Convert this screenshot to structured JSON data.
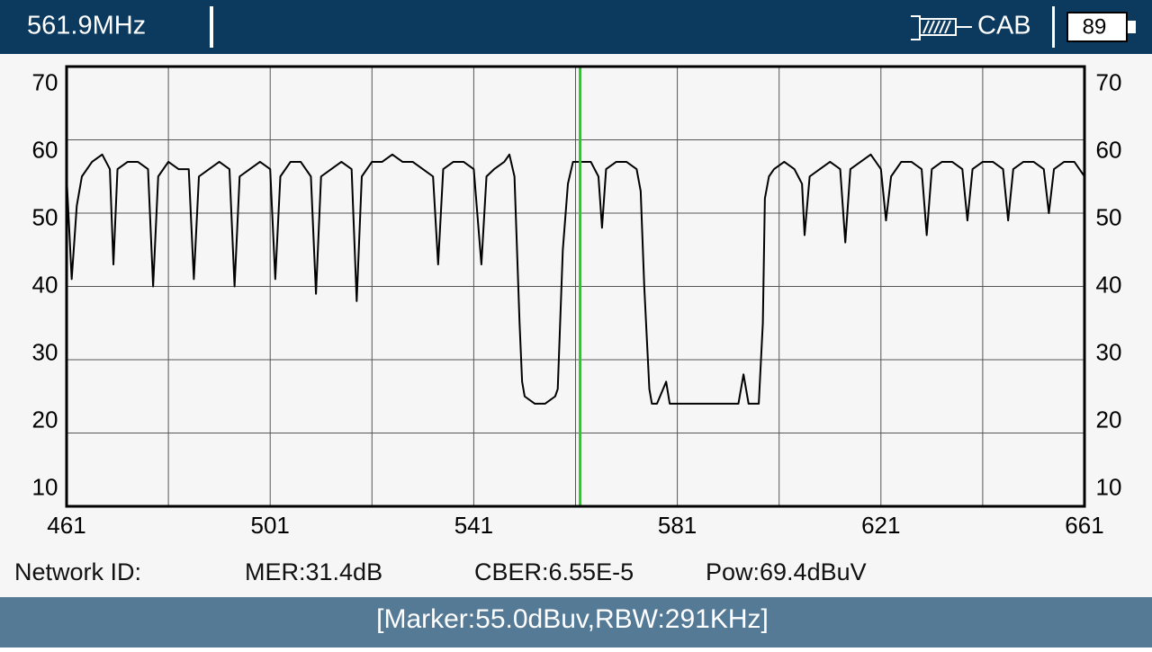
{
  "header": {
    "frequency": "561.9MHz",
    "mode": "CAB",
    "battery": "89"
  },
  "info": {
    "network_id": "Network ID:",
    "mer": "MER:31.4dB",
    "cber": "CBER:6.55E-5",
    "power": "Pow:69.4dBuV"
  },
  "status": "[Marker:55.0dBuv,RBW:291KHz]",
  "chart_data": {
    "type": "line",
    "color": "#000000",
    "xlim": [
      461,
      661
    ],
    "ylim": [
      10,
      70
    ],
    "xticks": [
      461,
      501,
      541,
      581,
      621,
      661
    ],
    "x_minor_grid": [
      481,
      521,
      561,
      601,
      641
    ],
    "yticks": [
      10,
      20,
      30,
      40,
      50,
      60,
      70
    ],
    "right_axis_labels": true,
    "grid": true,
    "marker": {
      "x": 561.9,
      "color": "#22cc22"
    },
    "x": [
      461,
      462,
      463,
      464,
      466,
      468,
      469.5,
      470.2,
      471,
      473,
      475,
      477,
      478,
      479,
      481,
      483,
      485,
      486,
      487,
      489,
      491,
      493,
      494,
      495,
      497,
      499,
      501,
      502,
      503,
      505,
      507,
      509,
      510,
      511,
      513,
      515,
      517,
      518,
      519,
      521,
      523,
      525,
      527,
      529,
      531,
      533,
      534,
      535,
      537,
      539,
      541,
      542.5,
      543.5,
      545,
      547,
      548,
      549,
      550,
      550.5,
      551,
      553,
      555,
      557,
      557.5,
      558.5,
      559.5,
      560.5,
      562,
      564,
      565.5,
      566.2,
      567,
      569,
      571,
      573,
      573.8,
      574.5,
      575.5,
      576,
      577,
      578.8,
      579.5,
      581,
      583,
      585,
      587,
      589,
      591,
      593,
      594,
      595,
      597,
      597.8,
      598.2,
      599,
      600,
      602,
      604,
      605.5,
      606,
      607,
      609,
      611,
      613,
      614,
      615,
      617,
      619,
      621,
      622,
      623,
      625,
      627,
      629,
      630,
      631,
      633,
      635,
      637,
      638,
      639,
      641,
      643,
      645,
      646,
      647,
      649,
      651,
      653,
      654,
      655,
      657,
      659,
      660,
      661
    ],
    "y": [
      55,
      41,
      51,
      55,
      57,
      58,
      56,
      43,
      56,
      57,
      57,
      56,
      40,
      55,
      57,
      56,
      56,
      41,
      55,
      56,
      57,
      56,
      40,
      55,
      56,
      57,
      56,
      41,
      55,
      57,
      57,
      55,
      39,
      55,
      56,
      57,
      56,
      38,
      55,
      57,
      57,
      58,
      57,
      57,
      56,
      55,
      43,
      56,
      57,
      57,
      56,
      43,
      55,
      56,
      57,
      58,
      55,
      35,
      27,
      25,
      24,
      24,
      25,
      26,
      45,
      54,
      57,
      57,
      57,
      55,
      48,
      56,
      57,
      57,
      56,
      53,
      40,
      26,
      24,
      24,
      27,
      24,
      24,
      24,
      24,
      24,
      24,
      24,
      24,
      28,
      24,
      24,
      35,
      52,
      55,
      56,
      57,
      56,
      54,
      47,
      55,
      56,
      57,
      56,
      46,
      56,
      57,
      58,
      56,
      49,
      55,
      57,
      57,
      56,
      47,
      56,
      57,
      57,
      56,
      49,
      56,
      57,
      57,
      56,
      49,
      56,
      57,
      57,
      56,
      50,
      56,
      57,
      57,
      56,
      55
    ]
  }
}
